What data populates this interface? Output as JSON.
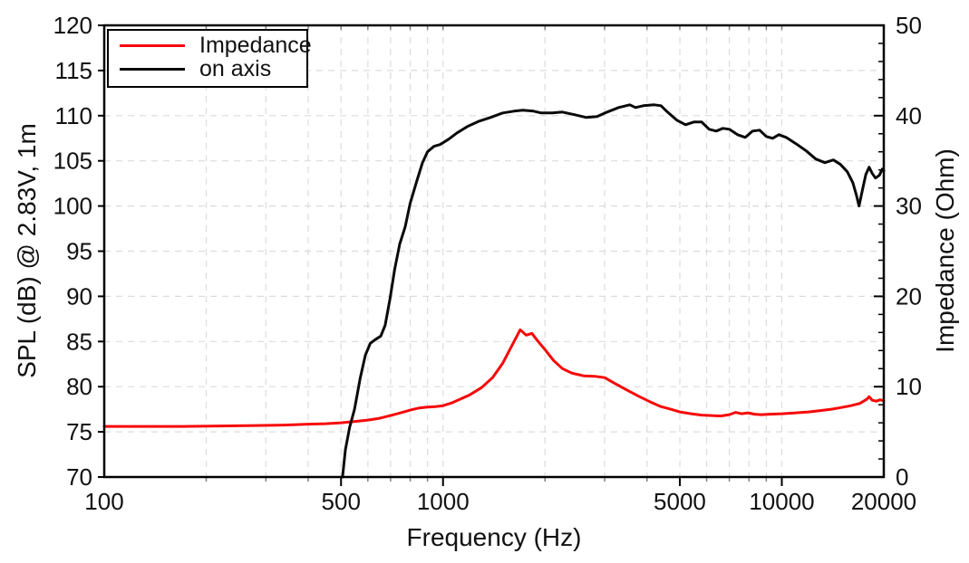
{
  "chart_data": {
    "type": "line",
    "title": "",
    "x_axis": {
      "label": "Frequency (Hz)",
      "scale": "log",
      "min": 100,
      "max": 20000,
      "labeled_ticks": [
        100,
        500,
        1000,
        5000,
        10000,
        20000
      ],
      "grid_ticks": [
        200,
        300,
        400,
        500,
        600,
        700,
        800,
        900,
        1000,
        2000,
        3000,
        4000,
        5000,
        6000,
        7000,
        8000,
        9000,
        10000
      ]
    },
    "y_left_axis": {
      "label": "SPL (dB) @ 2.83V, 1m",
      "min": 70,
      "max": 120,
      "tick_step": 5
    },
    "y_right_axis": {
      "label": "Impedance (Ohm)",
      "min": 0,
      "max": 50,
      "tick_step": 10,
      "minor_tick_step": 2
    },
    "grid": true,
    "legend_position": "top-left",
    "series": [
      {
        "name": "Impedance",
        "color": "#f70808",
        "axis": "right",
        "unit": "Ohm",
        "points": [
          [
            100,
            5.6
          ],
          [
            130,
            5.6
          ],
          [
            170,
            5.6
          ],
          [
            220,
            5.65
          ],
          [
            280,
            5.7
          ],
          [
            340,
            5.75
          ],
          [
            400,
            5.85
          ],
          [
            450,
            5.9
          ],
          [
            500,
            6.0
          ],
          [
            550,
            6.15
          ],
          [
            600,
            6.3
          ],
          [
            650,
            6.5
          ],
          [
            700,
            6.8
          ],
          [
            750,
            7.1
          ],
          [
            800,
            7.4
          ],
          [
            850,
            7.65
          ],
          [
            900,
            7.75
          ],
          [
            950,
            7.8
          ],
          [
            1000,
            7.9
          ],
          [
            1060,
            8.2
          ],
          [
            1120,
            8.6
          ],
          [
            1200,
            9.1
          ],
          [
            1300,
            9.9
          ],
          [
            1400,
            11.0
          ],
          [
            1500,
            12.6
          ],
          [
            1600,
            14.6
          ],
          [
            1690,
            16.3
          ],
          [
            1760,
            15.7
          ],
          [
            1830,
            15.9
          ],
          [
            1900,
            15.1
          ],
          [
            2000,
            14.1
          ],
          [
            2120,
            12.9
          ],
          [
            2250,
            12.0
          ],
          [
            2400,
            11.5
          ],
          [
            2600,
            11.2
          ],
          [
            2800,
            11.15
          ],
          [
            3000,
            11.0
          ],
          [
            3200,
            10.4
          ],
          [
            3500,
            9.6
          ],
          [
            3800,
            8.9
          ],
          [
            4100,
            8.3
          ],
          [
            4400,
            7.8
          ],
          [
            4700,
            7.5
          ],
          [
            5000,
            7.2
          ],
          [
            5400,
            7.0
          ],
          [
            5800,
            6.85
          ],
          [
            6200,
            6.8
          ],
          [
            6600,
            6.75
          ],
          [
            7000,
            6.9
          ],
          [
            7300,
            7.15
          ],
          [
            7600,
            7.0
          ],
          [
            7950,
            7.1
          ],
          [
            8300,
            6.95
          ],
          [
            8700,
            6.9
          ],
          [
            9200,
            6.95
          ],
          [
            10000,
            7.0
          ],
          [
            11000,
            7.1
          ],
          [
            12000,
            7.2
          ],
          [
            13000,
            7.35
          ],
          [
            14000,
            7.5
          ],
          [
            15000,
            7.7
          ],
          [
            16000,
            7.9
          ],
          [
            17000,
            8.15
          ],
          [
            17800,
            8.6
          ],
          [
            18100,
            8.9
          ],
          [
            18500,
            8.5
          ],
          [
            19000,
            8.4
          ],
          [
            19500,
            8.55
          ],
          [
            20000,
            8.45
          ]
        ]
      },
      {
        "name": "on axis",
        "color": "#0a0a0a",
        "axis": "left",
        "unit": "dB",
        "points": [
          [
            505,
            70
          ],
          [
            515,
            73
          ],
          [
            530,
            75.5
          ],
          [
            548,
            77.5
          ],
          [
            570,
            81
          ],
          [
            590,
            83.5
          ],
          [
            610,
            84.8
          ],
          [
            630,
            85.2
          ],
          [
            655,
            85.6
          ],
          [
            675,
            86.8
          ],
          [
            697,
            89.7
          ],
          [
            720,
            93
          ],
          [
            745,
            95.8
          ],
          [
            773,
            97.7
          ],
          [
            800,
            100.3
          ],
          [
            837,
            102.8
          ],
          [
            870,
            104.8
          ],
          [
            900,
            106.0
          ],
          [
            940,
            106.6
          ],
          [
            980,
            106.8
          ],
          [
            1040,
            107.4
          ],
          [
            1100,
            108.1
          ],
          [
            1180,
            108.8
          ],
          [
            1280,
            109.4
          ],
          [
            1380,
            109.8
          ],
          [
            1500,
            110.3
          ],
          [
            1620,
            110.5
          ],
          [
            1720,
            110.6
          ],
          [
            1850,
            110.5
          ],
          [
            1950,
            110.3
          ],
          [
            2100,
            110.3
          ],
          [
            2250,
            110.4
          ],
          [
            2450,
            110.1
          ],
          [
            2650,
            109.8
          ],
          [
            2850,
            109.9
          ],
          [
            3050,
            110.4
          ],
          [
            3300,
            110.9
          ],
          [
            3560,
            111.2
          ],
          [
            3700,
            110.9
          ],
          [
            3900,
            111.1
          ],
          [
            4200,
            111.2
          ],
          [
            4400,
            111.1
          ],
          [
            4600,
            110.4
          ],
          [
            4900,
            109.5
          ],
          [
            5200,
            109.0
          ],
          [
            5500,
            109.3
          ],
          [
            5800,
            109.3
          ],
          [
            6100,
            108.5
          ],
          [
            6400,
            108.3
          ],
          [
            6700,
            108.6
          ],
          [
            7000,
            108.5
          ],
          [
            7400,
            107.9
          ],
          [
            7800,
            107.6
          ],
          [
            8200,
            108.3
          ],
          [
            8600,
            108.4
          ],
          [
            9000,
            107.7
          ],
          [
            9400,
            107.5
          ],
          [
            9800,
            107.9
          ],
          [
            10300,
            107.6
          ],
          [
            11000,
            106.9
          ],
          [
            11800,
            106.1
          ],
          [
            12600,
            105.2
          ],
          [
            13400,
            104.8
          ],
          [
            14200,
            105.1
          ],
          [
            14900,
            104.6
          ],
          [
            15600,
            103.8
          ],
          [
            16200,
            102.6
          ],
          [
            16600,
            101.2
          ],
          [
            16900,
            100.0
          ],
          [
            17300,
            101.8
          ],
          [
            17700,
            103.5
          ],
          [
            18100,
            104.3
          ],
          [
            18500,
            103.6
          ],
          [
            18900,
            103.1
          ],
          [
            19400,
            103.4
          ],
          [
            19800,
            104.1
          ],
          [
            20000,
            103.9
          ]
        ]
      }
    ]
  },
  "colors": {
    "grid": "#dcdcdc",
    "frame": "#000000",
    "text": "#111111",
    "background": "#ffffff",
    "minor_tick": "#808080"
  }
}
